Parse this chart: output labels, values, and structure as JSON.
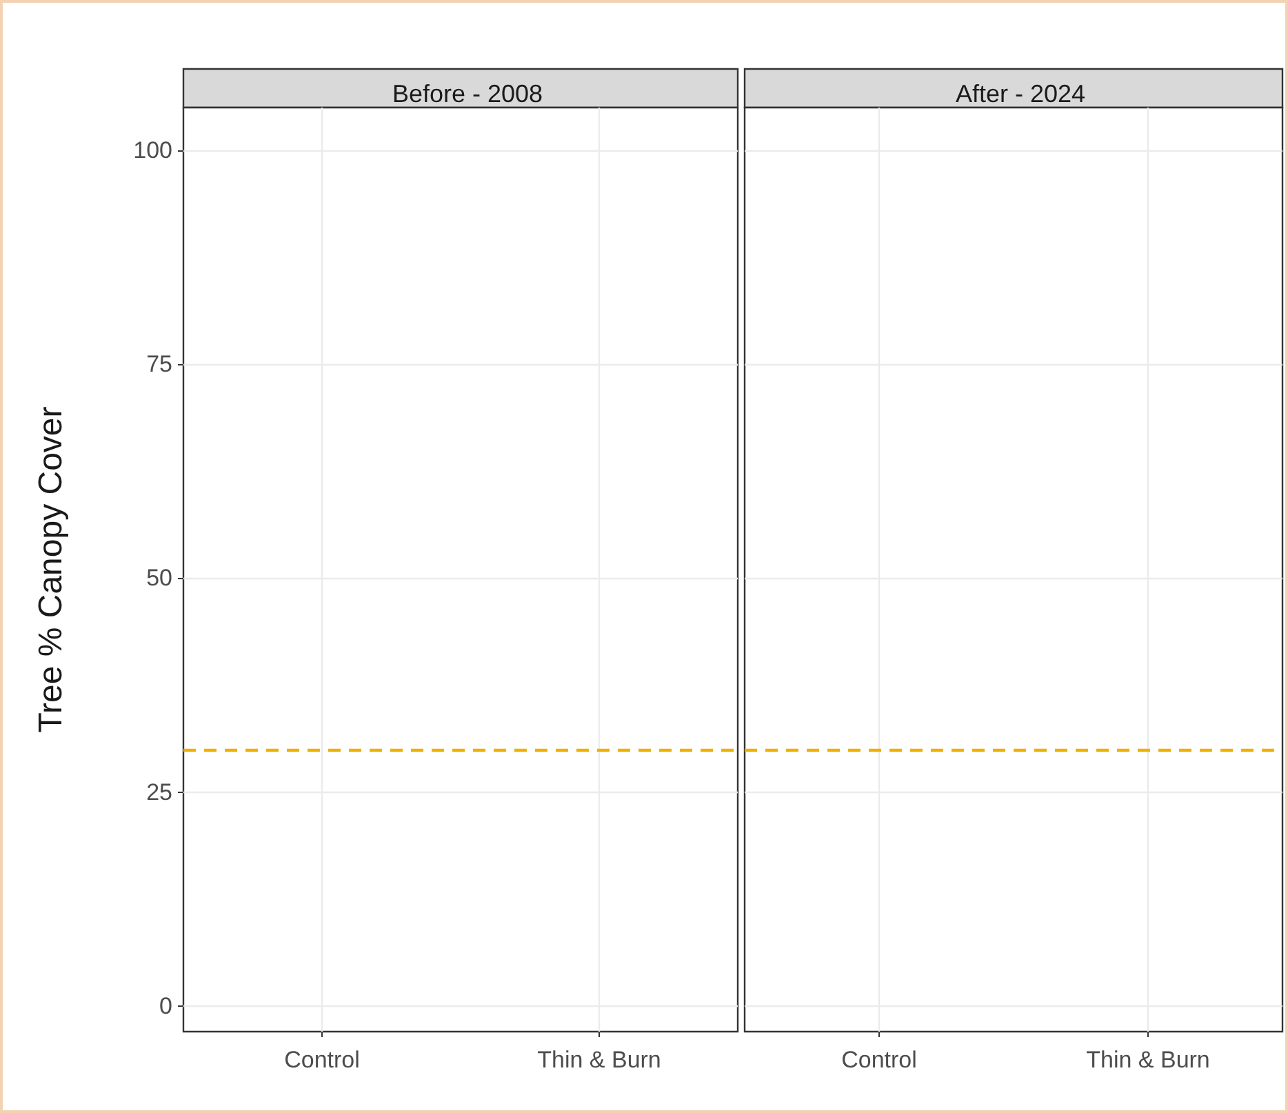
{
  "chart_data": [
    {
      "type": "scatter",
      "title": "Before - 2008",
      "ylabel": "Tree % Canopy Cover",
      "categories": [
        "Control",
        "Thin & Burn"
      ],
      "values": [
        null,
        null
      ],
      "ylim": [
        -3,
        105
      ],
      "yticks": [
        0,
        25,
        50,
        75,
        100
      ],
      "grid": true,
      "ref_lines": [
        {
          "axis": "y",
          "value": 30,
          "color": "#f0b000",
          "line_style": "dashed"
        }
      ]
    },
    {
      "type": "scatter",
      "title": "After - 2024",
      "categories": [
        "Control",
        "Thin & Burn"
      ],
      "values": [
        null,
        null
      ],
      "ylim": [
        -3,
        105
      ],
      "yticks": [
        0,
        25,
        50,
        75,
        100
      ],
      "grid": true,
      "tick_labels": "x",
      "ref_lines": [
        {
          "axis": "y",
          "value": 30,
          "color": "#f0b000",
          "line_style": "dashed"
        }
      ]
    }
  ]
}
